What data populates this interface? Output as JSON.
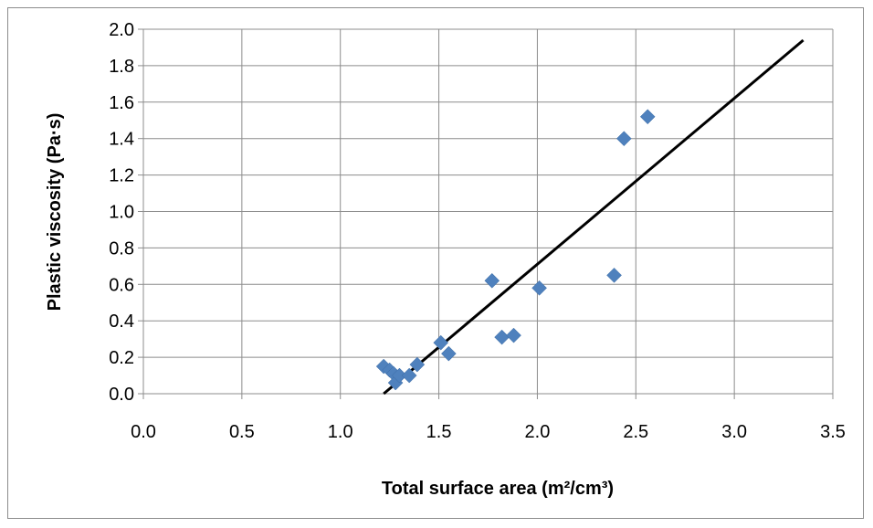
{
  "chart_data": {
    "type": "scatter",
    "xlabel": "Total surface area (m²/cm³)",
    "ylabel": "Plastic viscosity (Pa·s)",
    "xlim": [
      0.0,
      3.5
    ],
    "ylim": [
      0.0,
      2.0
    ],
    "x_ticks": [
      "0.0",
      "0.5",
      "1.0",
      "1.5",
      "2.0",
      "2.5",
      "3.0",
      "3.5"
    ],
    "y_ticks": [
      "0.0",
      "0.2",
      "0.4",
      "0.6",
      "0.8",
      "1.0",
      "1.2",
      "1.4",
      "1.6",
      "1.8",
      "2.0"
    ],
    "grid": true,
    "marker": "diamond",
    "marker_color": "#4f81bd",
    "line_color": "#000000",
    "series": [
      {
        "points": [
          {
            "x": 1.22,
            "y": 0.15
          },
          {
            "x": 1.25,
            "y": 0.13
          },
          {
            "x": 1.27,
            "y": 0.11
          },
          {
            "x": 1.28,
            "y": 0.06
          },
          {
            "x": 1.3,
            "y": 0.1
          },
          {
            "x": 1.35,
            "y": 0.1
          },
          {
            "x": 1.39,
            "y": 0.16
          },
          {
            "x": 1.51,
            "y": 0.28
          },
          {
            "x": 1.55,
            "y": 0.22
          },
          {
            "x": 1.77,
            "y": 0.62
          },
          {
            "x": 1.82,
            "y": 0.31
          },
          {
            "x": 1.88,
            "y": 0.32
          },
          {
            "x": 2.01,
            "y": 0.58
          },
          {
            "x": 2.39,
            "y": 0.65
          },
          {
            "x": 2.44,
            "y": 1.4
          },
          {
            "x": 2.56,
            "y": 1.52
          }
        ]
      }
    ],
    "trendline": {
      "x": [
        1.22,
        3.35
      ],
      "y": [
        0.0,
        1.94
      ]
    }
  }
}
